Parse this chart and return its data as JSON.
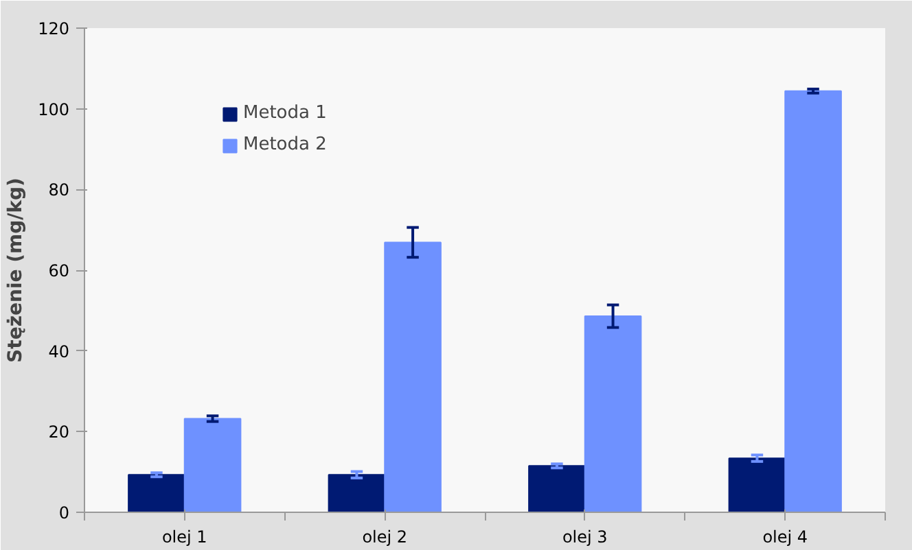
{
  "chart_data": {
    "type": "bar",
    "ylabel": "Stężenie (mg/kg)",
    "categories": [
      "olej 1",
      "olej 2",
      "olej 3",
      "olej 4"
    ],
    "series": [
      {
        "name": "Metoda 1",
        "color": "#001a73",
        "values": [
          9.3,
          9.3,
          11.5,
          13.4
        ],
        "errors": [
          0.5,
          0.8,
          0.5,
          0.8
        ]
      },
      {
        "name": "Metoda 2",
        "color": "#6e91ff",
        "values": [
          23.2,
          66.9,
          48.6,
          104.4
        ],
        "errors": [
          0.7,
          3.7,
          2.8,
          0.5
        ]
      }
    ],
    "ylim": [
      0,
      120
    ],
    "yticks": [
      0,
      20,
      40,
      60,
      80,
      100,
      120
    ],
    "grid": false,
    "legend": "top left"
  }
}
